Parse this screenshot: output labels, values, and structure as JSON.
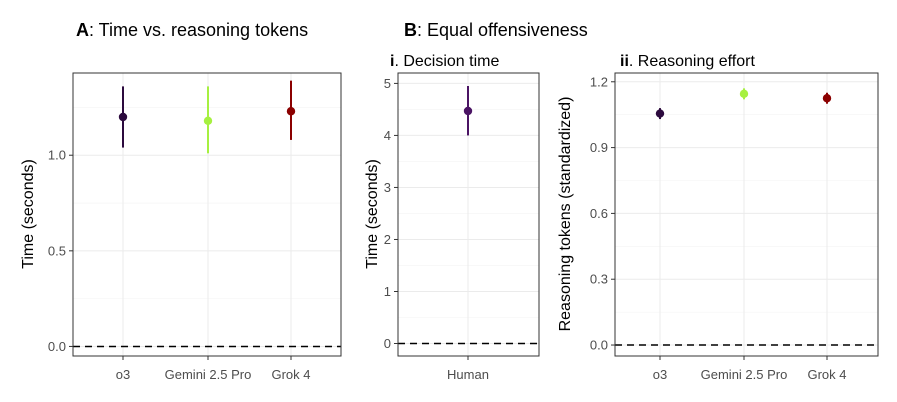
{
  "figure": {
    "panel_a": {
      "letter": "A",
      "title": ": Time vs. reasoning tokens"
    },
    "panel_b": {
      "letter": "B",
      "title": ": Equal offensiveness"
    },
    "panel_bi": {
      "numeral": "i",
      "title": ". Decision time"
    },
    "panel_bii": {
      "numeral": "ii",
      "title": ". Reasoning effort"
    }
  },
  "chart_data": [
    {
      "id": "A",
      "type": "scatter",
      "title": "Time vs. reasoning tokens",
      "xlabel": "",
      "ylabel": "Time (seconds)",
      "ylim": [
        -0.05,
        1.43
      ],
      "yticks": [
        0.0,
        0.5,
        1.0
      ],
      "ytick_labels": [
        "0.0",
        "0.5",
        "1.0"
      ],
      "ref_line": 0,
      "categories": [
        "o3",
        "Gemini 2.5 Pro",
        "Grok 4"
      ],
      "points": [
        {
          "label": "o3",
          "value": 1.2,
          "low": 1.04,
          "high": 1.36,
          "color": "#2c0a3e"
        },
        {
          "label": "Gemini 2.5 Pro",
          "value": 1.18,
          "low": 1.01,
          "high": 1.36,
          "color": "#a6f040"
        },
        {
          "label": "Grok 4",
          "value": 1.23,
          "low": 1.08,
          "high": 1.39,
          "color": "#8b0000"
        }
      ]
    },
    {
      "id": "Bi",
      "type": "scatter",
      "title": "Decision time",
      "xlabel": "",
      "ylabel": "Time (seconds)",
      "ylim": [
        -0.24,
        5.2
      ],
      "yticks": [
        0,
        1,
        2,
        3,
        4,
        5
      ],
      "ytick_labels": [
        "0",
        "1",
        "2",
        "3",
        "4",
        "5"
      ],
      "ref_line": 0,
      "categories": [
        "Human"
      ],
      "points": [
        {
          "label": "Human",
          "value": 4.47,
          "low": 4.0,
          "high": 4.95,
          "color": "#4b1464"
        }
      ]
    },
    {
      "id": "Bii",
      "type": "scatter",
      "title": "Reasoning effort",
      "xlabel": "",
      "ylabel": "Reasoning tokens (standardized)",
      "ylim": [
        -0.05,
        1.24
      ],
      "yticks": [
        0.0,
        0.3,
        0.6,
        0.9,
        1.2
      ],
      "ytick_labels": [
        "0.0",
        "0.3",
        "0.6",
        "0.9",
        "1.2"
      ],
      "ref_line": 0,
      "categories": [
        "o3",
        "Gemini 2.5 Pro",
        "Grok 4"
      ],
      "points": [
        {
          "label": "o3",
          "value": 1.055,
          "low": 1.03,
          "high": 1.08,
          "color": "#2c0a3e"
        },
        {
          "label": "Gemini 2.5 Pro",
          "value": 1.145,
          "low": 1.12,
          "high": 1.17,
          "color": "#a6f040"
        },
        {
          "label": "Grok 4",
          "value": 1.125,
          "low": 1.1,
          "high": 1.15,
          "color": "#8b0000"
        }
      ]
    }
  ]
}
